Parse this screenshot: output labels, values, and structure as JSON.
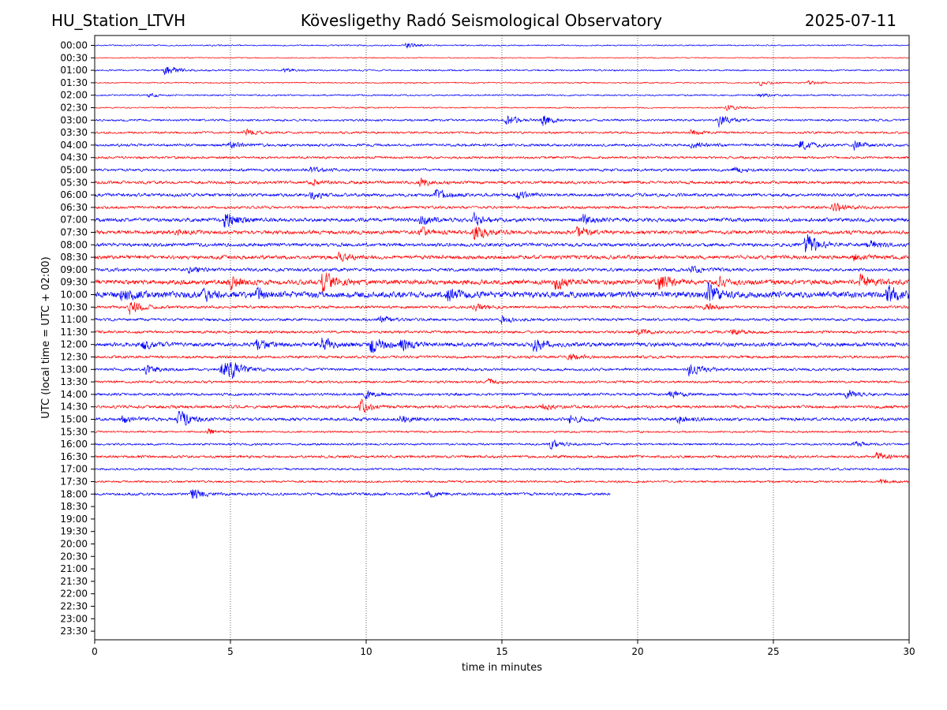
{
  "header": {
    "station": "HU_Station_LTVH",
    "observatory": "Kövesligethy Radó Seismological Observatory",
    "date": "2025-07-11"
  },
  "chart_data": {
    "type": "line",
    "title": "Kövesligethy Radó Seismological Observatory",
    "xlabel": "time in minutes",
    "ylabel": "UTC (local time = UTC + 02:00)",
    "xlim": [
      0,
      30
    ],
    "x_ticks": [
      0,
      5,
      10,
      15,
      20,
      25,
      30
    ],
    "x_tick_labels": [
      "0",
      "5",
      "10",
      "15",
      "20",
      "25",
      "30"
    ],
    "grid": "vertical dotted lines at x = 5, 10, 15, 20, 25",
    "row_labels": [
      "00:00",
      "00:30",
      "01:00",
      "01:30",
      "02:00",
      "02:30",
      "03:00",
      "03:30",
      "04:00",
      "04:30",
      "05:00",
      "05:30",
      "06:00",
      "06:30",
      "07:00",
      "07:30",
      "08:00",
      "08:30",
      "09:00",
      "09:30",
      "10:00",
      "10:30",
      "11:00",
      "11:30",
      "12:00",
      "12:30",
      "13:00",
      "13:30",
      "14:00",
      "14:30",
      "15:00",
      "15:30",
      "16:00",
      "16:30",
      "17:00",
      "17:30",
      "18:00",
      "18:30",
      "19:00",
      "19:30",
      "20:00",
      "20:30",
      "21:00",
      "21:30",
      "22:00",
      "22:30",
      "23:00",
      "23:30"
    ],
    "colors": {
      "even_rows": "#0000ff",
      "odd_rows": "#ff0000"
    },
    "traces": [
      {
        "row": "00:00",
        "end_minute": 30,
        "amplitude": 0.05,
        "events": [
          [
            11.5,
            0.2
          ]
        ]
      },
      {
        "row": "00:30",
        "end_minute": 30,
        "amplitude": 0.04,
        "events": []
      },
      {
        "row": "01:00",
        "end_minute": 30,
        "amplitude": 0.06,
        "events": [
          [
            2.6,
            0.5
          ],
          [
            7.0,
            0.15
          ]
        ]
      },
      {
        "row": "01:30",
        "end_minute": 30,
        "amplitude": 0.05,
        "events": [
          [
            24.5,
            0.2
          ],
          [
            26.3,
            0.15
          ]
        ]
      },
      {
        "row": "02:00",
        "end_minute": 30,
        "amplitude": 0.06,
        "events": [
          [
            2.0,
            0.15
          ],
          [
            24.5,
            0.15
          ]
        ]
      },
      {
        "row": "02:30",
        "end_minute": 30,
        "amplitude": 0.05,
        "events": [
          [
            23.3,
            0.2
          ]
        ]
      },
      {
        "row": "03:00",
        "end_minute": 30,
        "amplitude": 0.08,
        "events": [
          [
            15.2,
            0.4
          ],
          [
            16.5,
            0.4
          ],
          [
            23.0,
            0.45
          ]
        ]
      },
      {
        "row": "03:30",
        "end_minute": 30,
        "amplitude": 0.08,
        "events": [
          [
            5.5,
            0.25
          ],
          [
            22.0,
            0.2
          ]
        ]
      },
      {
        "row": "04:00",
        "end_minute": 30,
        "amplitude": 0.1,
        "events": [
          [
            5.0,
            0.2
          ],
          [
            22.0,
            0.25
          ],
          [
            26.0,
            0.35
          ],
          [
            28.0,
            0.3
          ]
        ]
      },
      {
        "row": "04:30",
        "end_minute": 30,
        "amplitude": 0.09,
        "events": []
      },
      {
        "row": "05:00",
        "end_minute": 30,
        "amplitude": 0.1,
        "events": [
          [
            8.0,
            0.2
          ],
          [
            23.5,
            0.2
          ]
        ]
      },
      {
        "row": "05:30",
        "end_minute": 30,
        "amplitude": 0.11,
        "events": [
          [
            8.0,
            0.25
          ],
          [
            12.0,
            0.25
          ]
        ]
      },
      {
        "row": "06:00",
        "end_minute": 30,
        "amplitude": 0.12,
        "events": [
          [
            8.0,
            0.3
          ],
          [
            12.6,
            0.45
          ],
          [
            15.6,
            0.25
          ]
        ]
      },
      {
        "row": "06:30",
        "end_minute": 30,
        "amplitude": 0.1,
        "events": [
          [
            27.2,
            0.35
          ]
        ]
      },
      {
        "row": "07:00",
        "end_minute": 30,
        "amplitude": 0.14,
        "events": [
          [
            4.8,
            0.7
          ],
          [
            12.0,
            0.35
          ],
          [
            14.0,
            0.4
          ],
          [
            18.0,
            0.3
          ]
        ]
      },
      {
        "row": "07:30",
        "end_minute": 30,
        "amplitude": 0.14,
        "events": [
          [
            3.0,
            0.2
          ],
          [
            12.0,
            0.35
          ],
          [
            14.0,
            0.65
          ],
          [
            17.8,
            0.4
          ]
        ]
      },
      {
        "row": "08:00",
        "end_minute": 30,
        "amplitude": 0.13,
        "events": [
          [
            26.2,
            0.9
          ],
          [
            28.5,
            0.3
          ]
        ]
      },
      {
        "row": "08:30",
        "end_minute": 30,
        "amplitude": 0.14,
        "events": [
          [
            9.0,
            0.25
          ],
          [
            28.0,
            0.3
          ]
        ]
      },
      {
        "row": "09:00",
        "end_minute": 30,
        "amplitude": 0.12,
        "events": [
          [
            3.5,
            0.2
          ],
          [
            22.0,
            0.2
          ]
        ]
      },
      {
        "row": "09:30",
        "end_minute": 30,
        "amplitude": 0.18,
        "events": [
          [
            5.0,
            0.4
          ],
          [
            8.4,
            0.8
          ],
          [
            17.0,
            0.5
          ],
          [
            20.8,
            0.6
          ],
          [
            23.0,
            0.3
          ],
          [
            28.2,
            0.45
          ]
        ]
      },
      {
        "row": "10:00",
        "end_minute": 30,
        "amplitude": 0.22,
        "events": [
          [
            1.0,
            0.5
          ],
          [
            4.0,
            0.4
          ],
          [
            6.0,
            0.4
          ],
          [
            13.0,
            0.45
          ],
          [
            22.6,
            0.75
          ],
          [
            29.2,
            0.7
          ]
        ]
      },
      {
        "row": "10:30",
        "end_minute": 30,
        "amplitude": 0.1,
        "events": [
          [
            1.3,
            0.5
          ],
          [
            14.0,
            0.25
          ],
          [
            22.5,
            0.3
          ]
        ]
      },
      {
        "row": "11:00",
        "end_minute": 30,
        "amplitude": 0.1,
        "events": [
          [
            10.5,
            0.3
          ],
          [
            15.0,
            0.25
          ]
        ]
      },
      {
        "row": "11:30",
        "end_minute": 30,
        "amplitude": 0.1,
        "events": [
          [
            20.0,
            0.2
          ],
          [
            23.5,
            0.2
          ]
        ]
      },
      {
        "row": "12:00",
        "end_minute": 30,
        "amplitude": 0.15,
        "events": [
          [
            1.8,
            0.3
          ],
          [
            6.0,
            0.4
          ],
          [
            8.4,
            0.45
          ],
          [
            10.2,
            0.7
          ],
          [
            11.3,
            0.4
          ],
          [
            16.2,
            0.5
          ]
        ]
      },
      {
        "row": "12:30",
        "end_minute": 30,
        "amplitude": 0.1,
        "events": [
          [
            17.5,
            0.25
          ]
        ]
      },
      {
        "row": "13:00",
        "end_minute": 30,
        "amplitude": 0.1,
        "events": [
          [
            1.9,
            0.35
          ],
          [
            4.7,
            0.55
          ],
          [
            5.0,
            0.6
          ],
          [
            21.9,
            0.5
          ]
        ]
      },
      {
        "row": "13:30",
        "end_minute": 30,
        "amplitude": 0.09,
        "events": [
          [
            14.5,
            0.2
          ]
        ]
      },
      {
        "row": "14:00",
        "end_minute": 30,
        "amplitude": 0.1,
        "events": [
          [
            10.0,
            0.25
          ],
          [
            21.2,
            0.25
          ],
          [
            27.7,
            0.3
          ]
        ]
      },
      {
        "row": "14:30",
        "end_minute": 30,
        "amplitude": 0.11,
        "events": [
          [
            9.8,
            0.45
          ],
          [
            16.5,
            0.2
          ]
        ]
      },
      {
        "row": "15:00",
        "end_minute": 30,
        "amplitude": 0.12,
        "events": [
          [
            1.0,
            0.3
          ],
          [
            3.1,
            0.75
          ],
          [
            11.3,
            0.25
          ],
          [
            17.5,
            0.3
          ],
          [
            21.5,
            0.3
          ]
        ]
      },
      {
        "row": "15:30",
        "end_minute": 30,
        "amplitude": 0.07,
        "events": [
          [
            4.2,
            0.2
          ]
        ]
      },
      {
        "row": "16:00",
        "end_minute": 30,
        "amplitude": 0.08,
        "events": [
          [
            16.8,
            0.35
          ],
          [
            28.0,
            0.2
          ]
        ]
      },
      {
        "row": "16:30",
        "end_minute": 30,
        "amplitude": 0.1,
        "events": [
          [
            28.8,
            0.3
          ]
        ]
      },
      {
        "row": "17:00",
        "end_minute": 30,
        "amplitude": 0.08,
        "events": []
      },
      {
        "row": "17:30",
        "end_minute": 30,
        "amplitude": 0.08,
        "events": [
          [
            29.0,
            0.2
          ]
        ]
      },
      {
        "row": "18:00",
        "end_minute": 19,
        "amplitude": 0.1,
        "events": [
          [
            3.6,
            0.45
          ],
          [
            12.3,
            0.2
          ]
        ]
      }
    ]
  }
}
